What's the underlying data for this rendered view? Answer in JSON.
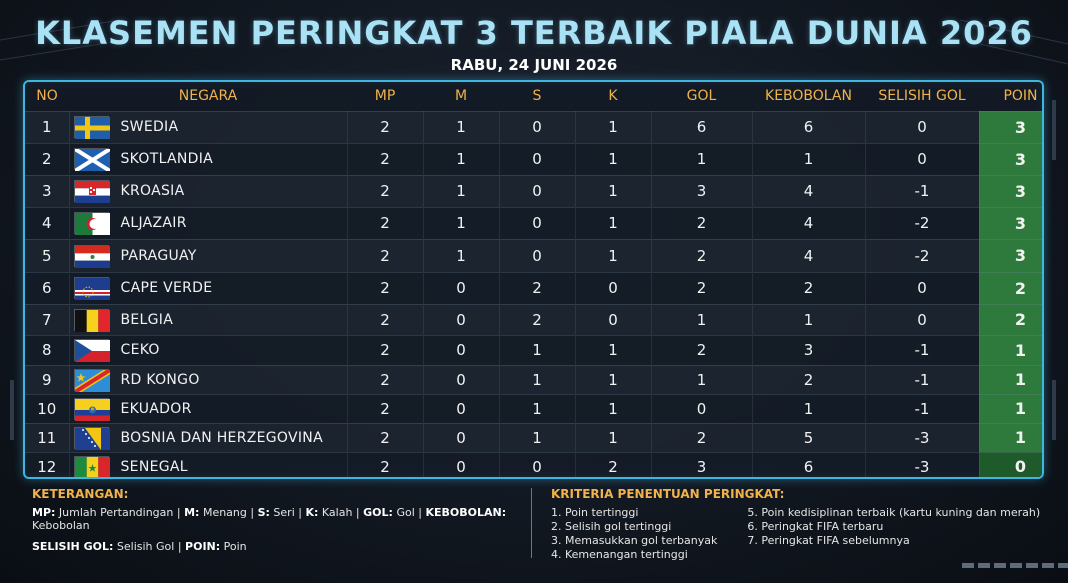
{
  "title": "KLASEMEN PERINGKAT 3 TERBAIK PIALA DUNIA 2026",
  "subtitle": "RABU, 24 JUNI 2026",
  "columns": [
    "NO",
    "NEGARA",
    "MP",
    "M",
    "S",
    "K",
    "GOL",
    "KEBOBOLAN",
    "SELISIH GOL",
    "POIN"
  ],
  "rows": [
    {
      "no": "1",
      "team": "SWEDIA",
      "flag": "sweden",
      "mp": "2",
      "m": "1",
      "s": "0",
      "k": "1",
      "gol": "6",
      "kebobolan": "6",
      "selisih": "0",
      "poin": "3"
    },
    {
      "no": "2",
      "team": "SKOTLANDIA",
      "flag": "scotland",
      "mp": "2",
      "m": "1",
      "s": "0",
      "k": "1",
      "gol": "1",
      "kebobolan": "1",
      "selisih": "0",
      "poin": "3"
    },
    {
      "no": "3",
      "team": "KROASIA",
      "flag": "croatia",
      "mp": "2",
      "m": "1",
      "s": "0",
      "k": "1",
      "gol": "3",
      "kebobolan": "4",
      "selisih": "-1",
      "poin": "3"
    },
    {
      "no": "4",
      "team": "ALJAZAIR",
      "flag": "algeria",
      "mp": "2",
      "m": "1",
      "s": "0",
      "k": "1",
      "gol": "2",
      "kebobolan": "4",
      "selisih": "-2",
      "poin": "3"
    },
    {
      "no": "5",
      "team": "PARAGUAY",
      "flag": "paraguay",
      "mp": "2",
      "m": "1",
      "s": "0",
      "k": "1",
      "gol": "2",
      "kebobolan": "4",
      "selisih": "-2",
      "poin": "3"
    },
    {
      "no": "6",
      "team": "CAPE VERDE",
      "flag": "capeverde",
      "mp": "2",
      "m": "0",
      "s": "2",
      "k": "0",
      "gol": "2",
      "kebobolan": "2",
      "selisih": "0",
      "poin": "2"
    },
    {
      "no": "7",
      "team": "BELGIA",
      "flag": "belgium",
      "mp": "2",
      "m": "0",
      "s": "2",
      "k": "0",
      "gol": "1",
      "kebobolan": "1",
      "selisih": "0",
      "poin": "2"
    },
    {
      "no": "8",
      "team": "CEKO",
      "flag": "czech",
      "mp": "2",
      "m": "0",
      "s": "1",
      "k": "1",
      "gol": "2",
      "kebobolan": "3",
      "selisih": "-1",
      "poin": "1"
    },
    {
      "no": "9",
      "team": "RD KONGO",
      "flag": "drcongo",
      "mp": "2",
      "m": "0",
      "s": "1",
      "k": "1",
      "gol": "1",
      "kebobolan": "2",
      "selisih": "-1",
      "poin": "1"
    },
    {
      "no": "10",
      "team": "EKUADOR",
      "flag": "ecuador",
      "mp": "2",
      "m": "0",
      "s": "1",
      "k": "1",
      "gol": "0",
      "kebobolan": "1",
      "selisih": "-1",
      "poin": "1"
    },
    {
      "no": "11",
      "team": "BOSNIA DAN HERZEGOVINA",
      "flag": "bosnia",
      "mp": "2",
      "m": "0",
      "s": "1",
      "k": "1",
      "gol": "2",
      "kebobolan": "5",
      "selisih": "-3",
      "poin": "1"
    },
    {
      "no": "12",
      "team": "SENEGAL",
      "flag": "senegal",
      "mp": "2",
      "m": "0",
      "s": "0",
      "k": "2",
      "gol": "3",
      "kebobolan": "6",
      "selisih": "-3",
      "poin": "0"
    }
  ],
  "legend": {
    "title": "KETERANGAN:",
    "items": [
      {
        "abbr": "MP:",
        "text": "Jumlah Pertandingan"
      },
      {
        "abbr": "M:",
        "text": "Menang"
      },
      {
        "abbr": "S:",
        "text": "Seri"
      },
      {
        "abbr": "K:",
        "text": "Kalah"
      },
      {
        "abbr": "GOL:",
        "text": "Gol"
      },
      {
        "abbr": "KEBOBOLAN:",
        "text": "Kebobolan"
      },
      {
        "abbr": "SELISIH GOL:",
        "text": "Selisih Gol"
      },
      {
        "abbr": "POIN:",
        "text": "Poin"
      }
    ]
  },
  "criteria": {
    "title": "KRITERIA PENENTUAN PERINGKAT:",
    "col1": [
      "1. Poin tertinggi",
      "2. Selisih gol tertinggi",
      "3. Memasukkan gol terbanyak",
      "4. Kemenangan tertinggi"
    ],
    "col2": [
      "5. Poin kedisiplinan terbaik (kartu kuning dan merah)",
      "6. Peringkat FIFA terbaru",
      "7. Peringkat FIFA sebelumnya"
    ]
  },
  "colors": {
    "accent": "#f1b24a",
    "title": "#a9e2f5",
    "border": "#3fb6e0",
    "points": "#2e7a3c"
  }
}
